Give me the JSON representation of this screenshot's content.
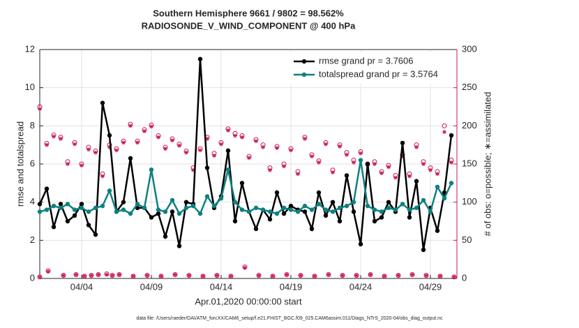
{
  "chart_data": {
    "type": "line",
    "title": "Southern Hemisphere 9661 / 9802 = 98.562%",
    "subtitle": "RADIOSONDE_V_WIND_COMPONENT @ 400 hPa",
    "y_label": "rmse and totalspread",
    "y2_label": "# of obs: o=possible; ∗=assimilated",
    "x_label": "Apr.01,2020 00:00:00 start",
    "footnote": "data file: /Users/raeder/DAI/ATM_forcXX/CAM6_setup/f.e21.FHIST_BGC.f09_025.CAM6assim.011/Diags_NTrS_2020-04/obs_diag_output.nc",
    "xlim": [
      0,
      29.9
    ],
    "xticks": [
      {
        "value": 3,
        "label": "04/04"
      },
      {
        "value": 8,
        "label": "04/09"
      },
      {
        "value": 13,
        "label": "04/14"
      },
      {
        "value": 18,
        "label": "04/19"
      },
      {
        "value": 23,
        "label": "04/24"
      },
      {
        "value": 28,
        "label": "04/29"
      }
    ],
    "ylim": [
      0,
      12
    ],
    "yticks": [
      0,
      2,
      4,
      6,
      8,
      10,
      12
    ],
    "y2lim": [
      0,
      300
    ],
    "y2ticks": [
      0,
      50,
      100,
      150,
      200,
      250,
      300
    ],
    "grid": true,
    "legend": "upper right",
    "axis_color_y2": "#c8174f",
    "x": [
      0,
      0.5,
      1,
      1.5,
      2,
      2.5,
      3,
      3.5,
      4,
      4.5,
      5,
      5.5,
      6,
      6.5,
      7,
      7.5,
      8,
      8.5,
      9,
      9.5,
      10,
      10.5,
      11,
      11.5,
      12,
      12.5,
      13,
      13.5,
      14,
      14.5,
      15,
      15.5,
      16,
      16.5,
      17,
      17.5,
      18,
      18.5,
      19,
      19.5,
      20,
      20.5,
      21,
      21.5,
      22,
      22.5,
      23,
      23.5,
      24,
      24.5,
      25,
      25.5,
      26,
      26.5,
      27,
      27.5,
      28,
      28.5,
      29,
      29.5
    ],
    "series": [
      {
        "name": "rmse grand pr = 3.7606",
        "color": "#000000",
        "values": [
          3.9,
          4.7,
          2.7,
          3.9,
          3.0,
          3.3,
          3.9,
          2.8,
          2.3,
          9.2,
          7.5,
          3.5,
          4.0,
          6.3,
          3.7,
          3.7,
          3.2,
          3.4,
          2.2,
          3.5,
          1.7,
          4.0,
          3.9,
          11.5,
          5.8,
          3.7,
          4.3,
          6.7,
          3.0,
          5.0,
          3.5,
          2.6,
          3.6,
          3.1,
          4.5,
          3.4,
          3.8,
          3.6,
          3.5,
          2.6,
          4.5,
          3.3,
          4.0,
          3.0,
          5.4,
          3.5,
          1.8,
          6.0,
          3.0,
          3.2,
          4.0,
          3.5,
          7.1,
          3.2,
          5.1,
          1.5,
          3.7,
          2.5,
          4.5,
          7.5
        ]
      },
      {
        "name": "totalspread grand pr = 3.5764",
        "color": "#0f8080",
        "values": [
          3.5,
          3.6,
          3.8,
          3.7,
          3.9,
          3.6,
          3.7,
          3.5,
          3.7,
          3.8,
          4.6,
          3.5,
          3.6,
          3.4,
          3.9,
          3.7,
          5.7,
          3.6,
          3.5,
          4.1,
          3.4,
          3.7,
          3.8,
          3.4,
          4.3,
          3.8,
          4.2,
          5.7,
          4.0,
          3.6,
          3.5,
          3.7,
          3.6,
          3.5,
          3.4,
          3.7,
          3.6,
          3.5,
          3.8,
          3.6,
          3.9,
          3.6,
          3.5,
          3.7,
          3.8,
          4.0,
          6.2,
          3.8,
          3.6,
          3.5,
          3.7,
          3.6,
          3.9,
          3.6,
          3.7,
          4.1,
          3.5,
          4.8,
          4.2,
          5.0
        ]
      }
    ],
    "obs_possible": [
      225,
      177,
      188,
      185,
      153,
      178,
      150,
      172,
      167,
      137,
      175,
      170,
      180,
      202,
      180,
      195,
      201,
      187,
      172,
      183,
      176,
      167,
      145,
      170,
      185,
      164,
      178,
      196,
      190,
      187,
      160,
      182,
      175,
      145,
      173,
      150,
      170,
      140,
      185,
      162,
      154,
      178,
      142,
      175,
      165,
      155,
      166,
      150,
      153,
      140,
      148,
      135,
      162,
      137,
      175,
      153,
      145,
      140,
      200,
      155
    ],
    "obs_assimilated": [
      222,
      175,
      186,
      183,
      150,
      176,
      148,
      169,
      165,
      134,
      172,
      168,
      178,
      200,
      178,
      193,
      199,
      185,
      170,
      181,
      174,
      165,
      142,
      168,
      183,
      161,
      176,
      194,
      187,
      185,
      158,
      180,
      172,
      142,
      171,
      147,
      168,
      137,
      183,
      160,
      152,
      176,
      139,
      173,
      162,
      152,
      164,
      148,
      150,
      138,
      146,
      132,
      160,
      134,
      172,
      150,
      142,
      137,
      192,
      152
    ],
    "obs_low_x": [
      0,
      0.6,
      1.7,
      2.6,
      3.2,
      3.7,
      4.2,
      4.8,
      5.2,
      5.7,
      6.7,
      7.7,
      8.7,
      9.7,
      10.7,
      11.7,
      12.7,
      13.7,
      14.7,
      15.7,
      16.7,
      17.7,
      18.7,
      19.7,
      20.7,
      21.7,
      22.7,
      23.7,
      24.7,
      25.7,
      26.7,
      27.7,
      28.7,
      29.7
    ],
    "obs_low_possible": [
      2,
      10,
      4,
      5,
      3,
      4,
      5,
      6,
      4,
      5,
      3,
      4,
      3,
      5,
      4,
      3,
      4,
      3,
      15,
      4,
      3,
      5,
      4,
      3,
      5,
      4,
      4,
      5,
      3,
      4,
      5,
      4,
      3,
      2
    ],
    "obs_low_assimilated": [
      2,
      9,
      4,
      5,
      3,
      4,
      5,
      5,
      4,
      5,
      3,
      4,
      3,
      5,
      4,
      3,
      4,
      3,
      14,
      4,
      3,
      5,
      4,
      3,
      5,
      4,
      4,
      5,
      3,
      4,
      5,
      4,
      3,
      2
    ]
  }
}
